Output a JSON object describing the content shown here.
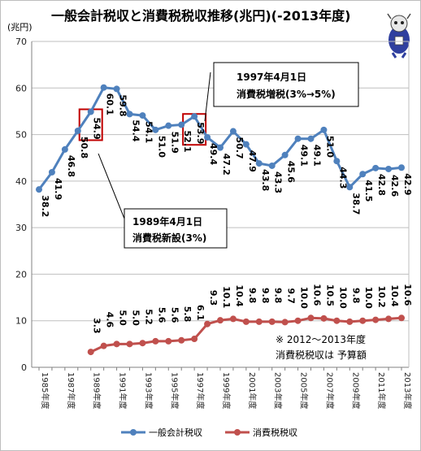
{
  "chart_data": {
    "type": "line",
    "title": "一般会計税収と消費税税収推移(兆円)(-2013年度)",
    "unit_label": "(兆円)",
    "ylim": [
      0,
      70
    ],
    "yticks": [
      0,
      10,
      20,
      30,
      40,
      50,
      60,
      70
    ],
    "grid": true,
    "legend_position": "bottom",
    "x": [
      1985,
      1986,
      1987,
      1988,
      1989,
      1990,
      1991,
      1992,
      1993,
      1994,
      1995,
      1996,
      1997,
      1998,
      1999,
      2000,
      2001,
      2002,
      2003,
      2004,
      2005,
      2006,
      2007,
      2008,
      2009,
      2010,
      2011,
      2012,
      2013
    ],
    "x_tick_labels": [
      "1985年度",
      "1987年度",
      "1989年度",
      "1991年度",
      "1993年度",
      "1995年度",
      "1997年度",
      "1999年度",
      "2001年度",
      "2003年度",
      "2005年度",
      "2007年度",
      "2009年度",
      "2011年度",
      "2013年度"
    ],
    "x_tick_years": [
      1985,
      1987,
      1989,
      1991,
      1993,
      1995,
      1997,
      1999,
      2001,
      2003,
      2005,
      2007,
      2009,
      2011,
      2013
    ],
    "series": [
      {
        "name": "一般会計税収",
        "color": "#4f81bd",
        "values": [
          38.2,
          41.9,
          46.8,
          50.8,
          54.9,
          60.1,
          59.8,
          54.4,
          54.1,
          51.0,
          51.9,
          52.1,
          53.9,
          49.4,
          47.2,
          50.7,
          47.9,
          43.8,
          43.3,
          45.6,
          49.1,
          49.1,
          51.0,
          44.3,
          38.7,
          41.5,
          42.8,
          42.6,
          42.9
        ],
        "labels": [
          "38.2",
          "41.9",
          "46.8",
          "50.8",
          "54.9",
          "60.1",
          "59.8",
          "54.4",
          "54.1",
          "51.0",
          "51.9",
          "52.1",
          "53.9",
          "49.4",
          "47.2",
          "50.7",
          "47.9",
          "43.8",
          "43.3",
          "45.6",
          "49.1",
          "49.1",
          "51.0",
          "44.3",
          "38.7",
          "41.5",
          "42.8",
          "42.6",
          "42.9"
        ]
      },
      {
        "name": "消費税税収",
        "color": "#c0504d",
        "values": [
          null,
          null,
          null,
          null,
          3.3,
          4.6,
          5.0,
          5.0,
          5.2,
          5.6,
          5.6,
          5.8,
          6.1,
          9.3,
          10.1,
          10.4,
          9.8,
          9.8,
          9.8,
          9.7,
          10.0,
          10.6,
          10.5,
          10.0,
          9.8,
          10.0,
          10.2,
          10.4,
          10.6
        ],
        "labels": [
          "",
          "",
          "",
          "",
          "3.3",
          "4.6",
          "5.0",
          "5.0",
          "5.2",
          "5.6",
          "5.6",
          "5.8",
          "6.1",
          "9.3",
          "10.1",
          "10.4",
          "9.8",
          "9.8",
          "9.8",
          "9.7",
          "10.0",
          "10.6",
          "10.5",
          "10.0",
          "9.8",
          "10.0",
          "10.2",
          "10.4",
          "10.6"
        ]
      }
    ],
    "annotations": [
      {
        "lines": [
          "1997年4月1日",
          "消費税増税",
          "(3%→5%)"
        ]
      },
      {
        "lines": [
          "1989年4月1日",
          "消費税新設",
          "(3%)"
        ]
      },
      {
        "lines": [
          "※ 2012～2013年度",
          "消費税税収は 予算額"
        ]
      }
    ]
  },
  "colors": {
    "grid": "#bfbfbf",
    "box": "#c00000"
  },
  "icon": "mascot-character-icon"
}
